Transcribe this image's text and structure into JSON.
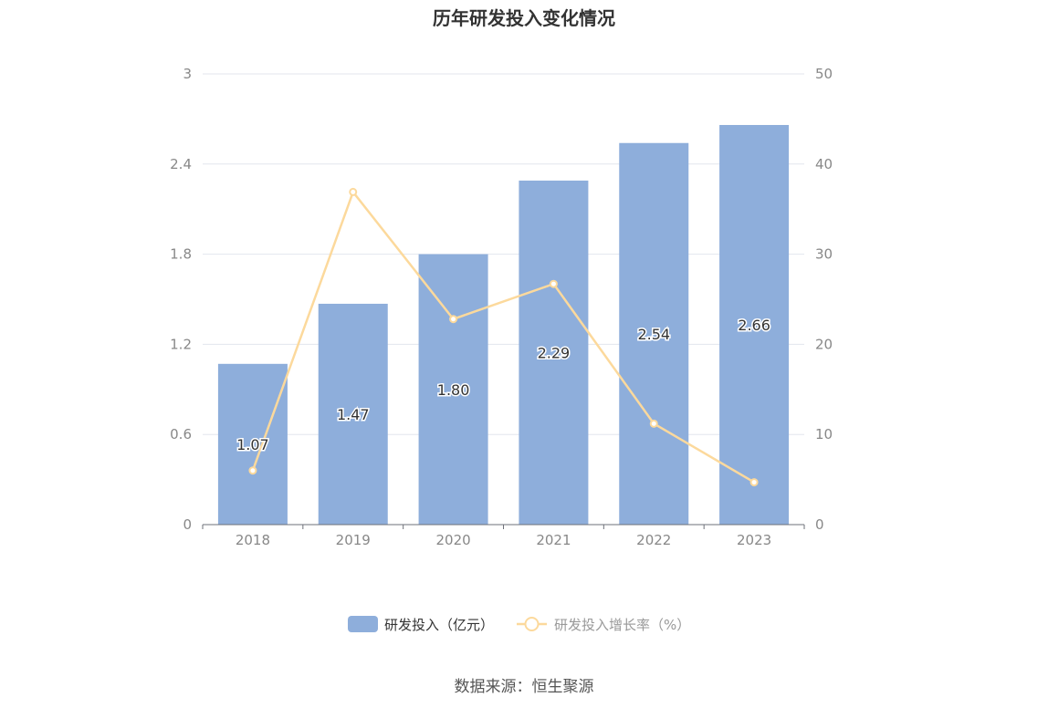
{
  "title": "历年研发投入变化情况",
  "source": "数据来源：恒生聚源",
  "colors": {
    "bar": "#8eaedb",
    "line": "#fcd99c",
    "grid": "#e3e6ee",
    "axis": "#888888"
  },
  "chart_data": {
    "type": "bar",
    "title": "历年研发投入变化情况",
    "categories": [
      "2018",
      "2019",
      "2020",
      "2021",
      "2022",
      "2023"
    ],
    "series": [
      {
        "name": "研发投入（亿元）",
        "type": "bar",
        "axis": "left",
        "values": [
          1.07,
          1.47,
          1.8,
          2.29,
          2.54,
          2.66
        ],
        "labels": [
          "1.07",
          "1.47",
          "1.80",
          "2.29",
          "2.54",
          "2.66"
        ]
      },
      {
        "name": "研发投入增长率（%）",
        "type": "line",
        "axis": "right",
        "values": [
          6.0,
          36.9,
          22.8,
          26.7,
          11.2,
          4.7
        ]
      }
    ],
    "y_left": {
      "min": 0,
      "max": 3,
      "ticks": [
        "0",
        "0.6",
        "1.2",
        "1.8",
        "2.4",
        "3"
      ]
    },
    "y_right": {
      "min": 0,
      "max": 50,
      "ticks": [
        "0",
        "10",
        "20",
        "30",
        "40",
        "50"
      ]
    },
    "grid": true,
    "legend": "bottom-center"
  }
}
